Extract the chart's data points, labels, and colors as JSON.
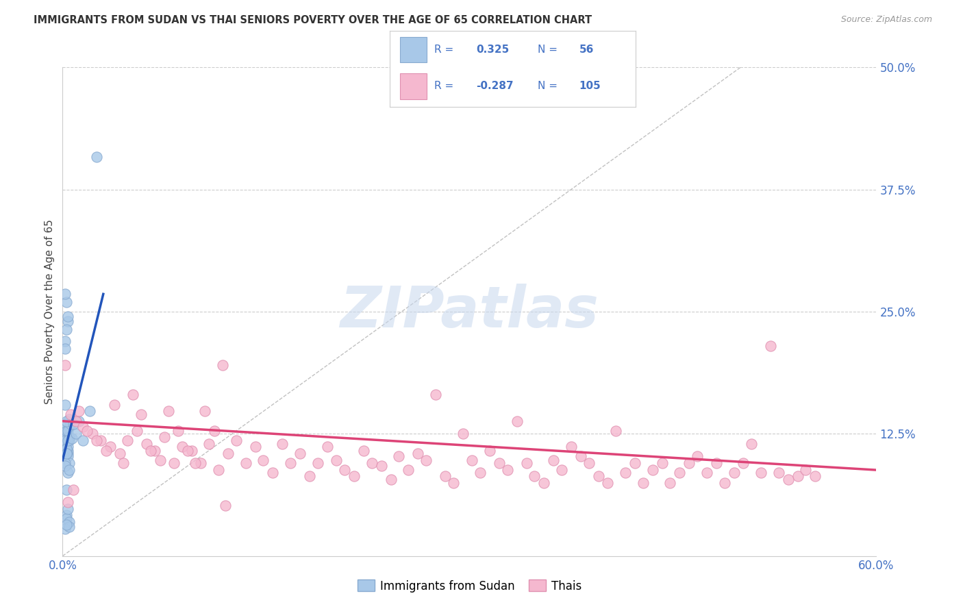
{
  "title": "IMMIGRANTS FROM SUDAN VS THAI SENIORS POVERTY OVER THE AGE OF 65 CORRELATION CHART",
  "source": "Source: ZipAtlas.com",
  "ylabel": "Seniors Poverty Over the Age of 65",
  "xlim": [
    0.0,
    0.6
  ],
  "ylim": [
    0.0,
    0.5
  ],
  "xtick_positions": [
    0.0,
    0.1,
    0.2,
    0.3,
    0.4,
    0.5,
    0.6
  ],
  "xticklabels": [
    "0.0%",
    "",
    "",
    "",
    "",
    "",
    "60.0%"
  ],
  "ytick_positions": [
    0.0,
    0.125,
    0.25,
    0.375,
    0.5
  ],
  "yticklabels": [
    "",
    "12.5%",
    "25.0%",
    "37.5%",
    "50.0%"
  ],
  "grid_color": "#cccccc",
  "bg_color": "#ffffff",
  "watermark_text": "ZIPatlas",
  "watermark_color": "#c8d8ee",
  "blue_fill": "#a8c8e8",
  "blue_edge": "#88aad0",
  "pink_fill": "#f5b8cf",
  "pink_edge": "#e090b0",
  "blue_line_color": "#2255bb",
  "pink_line_color": "#dd4477",
  "tick_label_color": "#4472c4",
  "legend_text_color": "#4472c4",
  "title_color": "#333333",
  "source_color": "#999999",
  "blue_label": "Immigrants from Sudan",
  "pink_label": "Thais",
  "legend_r1": "R = ",
  "legend_v1": "0.325",
  "legend_n1_lbl": "N = ",
  "legend_n1": "56",
  "legend_r2": "R = ",
  "legend_v2": "-0.287",
  "legend_n2_lbl": "N = ",
  "legend_n2": "105",
  "blue_x": [
    0.003,
    0.004,
    0.002,
    0.005,
    0.003,
    0.004,
    0.002,
    0.003,
    0.005,
    0.002,
    0.003,
    0.004,
    0.002,
    0.003,
    0.004,
    0.003,
    0.002,
    0.004,
    0.003,
    0.002,
    0.004,
    0.003,
    0.005,
    0.002,
    0.003,
    0.004,
    0.003,
    0.002,
    0.005,
    0.003,
    0.004,
    0.003,
    0.002,
    0.005,
    0.003,
    0.004,
    0.006,
    0.003,
    0.004,
    0.002,
    0.003,
    0.005,
    0.007,
    0.01,
    0.015,
    0.02,
    0.012,
    0.008,
    0.025,
    0.003,
    0.003,
    0.004,
    0.005,
    0.002,
    0.005,
    0.003
  ],
  "blue_y": [
    0.125,
    0.13,
    0.115,
    0.12,
    0.11,
    0.105,
    0.135,
    0.128,
    0.118,
    0.112,
    0.122,
    0.108,
    0.22,
    0.115,
    0.24,
    0.26,
    0.268,
    0.245,
    0.232,
    0.212,
    0.102,
    0.115,
    0.095,
    0.118,
    0.108,
    0.112,
    0.128,
    0.155,
    0.14,
    0.11,
    0.085,
    0.105,
    0.095,
    0.122,
    0.068,
    0.128,
    0.135,
    0.105,
    0.118,
    0.092,
    0.138,
    0.088,
    0.12,
    0.125,
    0.118,
    0.148,
    0.138,
    0.135,
    0.408,
    0.042,
    0.038,
    0.048,
    0.035,
    0.028,
    0.03,
    0.032
  ],
  "pink_x": [
    0.006,
    0.01,
    0.015,
    0.022,
    0.028,
    0.035,
    0.042,
    0.048,
    0.055,
    0.062,
    0.068,
    0.075,
    0.082,
    0.088,
    0.095,
    0.102,
    0.108,
    0.115,
    0.122,
    0.128,
    0.135,
    0.142,
    0.148,
    0.155,
    0.162,
    0.168,
    0.175,
    0.182,
    0.188,
    0.195,
    0.202,
    0.208,
    0.215,
    0.222,
    0.228,
    0.235,
    0.242,
    0.248,
    0.255,
    0.262,
    0.268,
    0.275,
    0.282,
    0.288,
    0.295,
    0.302,
    0.308,
    0.315,
    0.322,
    0.328,
    0.335,
    0.342,
    0.348,
    0.355,
    0.362,
    0.368,
    0.375,
    0.382,
    0.388,
    0.395,
    0.402,
    0.408,
    0.415,
    0.422,
    0.428,
    0.435,
    0.442,
    0.448,
    0.455,
    0.462,
    0.468,
    0.475,
    0.482,
    0.488,
    0.495,
    0.502,
    0.508,
    0.515,
    0.522,
    0.528,
    0.535,
    0.542,
    0.548,
    0.555,
    0.012,
    0.018,
    0.025,
    0.032,
    0.038,
    0.045,
    0.052,
    0.058,
    0.065,
    0.072,
    0.078,
    0.085,
    0.092,
    0.098,
    0.105,
    0.112,
    0.118,
    0.008,
    0.004,
    0.002,
    0.12
  ],
  "pink_y": [
    0.145,
    0.138,
    0.132,
    0.125,
    0.118,
    0.112,
    0.105,
    0.118,
    0.128,
    0.115,
    0.108,
    0.122,
    0.095,
    0.112,
    0.108,
    0.095,
    0.115,
    0.088,
    0.105,
    0.118,
    0.095,
    0.112,
    0.098,
    0.085,
    0.115,
    0.095,
    0.105,
    0.082,
    0.095,
    0.112,
    0.098,
    0.088,
    0.082,
    0.108,
    0.095,
    0.092,
    0.078,
    0.102,
    0.088,
    0.105,
    0.098,
    0.165,
    0.082,
    0.075,
    0.125,
    0.098,
    0.085,
    0.108,
    0.095,
    0.088,
    0.138,
    0.095,
    0.082,
    0.075,
    0.098,
    0.088,
    0.112,
    0.102,
    0.095,
    0.082,
    0.075,
    0.128,
    0.085,
    0.095,
    0.075,
    0.088,
    0.095,
    0.075,
    0.085,
    0.095,
    0.102,
    0.085,
    0.095,
    0.075,
    0.085,
    0.095,
    0.115,
    0.085,
    0.215,
    0.085,
    0.078,
    0.082,
    0.088,
    0.082,
    0.148,
    0.128,
    0.118,
    0.108,
    0.155,
    0.095,
    0.165,
    0.145,
    0.108,
    0.098,
    0.148,
    0.128,
    0.108,
    0.095,
    0.148,
    0.128,
    0.195,
    0.068,
    0.055,
    0.195,
    0.052
  ],
  "blue_trend_x": [
    0.0,
    0.03
  ],
  "blue_trend_y": [
    0.098,
    0.268
  ],
  "pink_trend_x": [
    0.0,
    0.6
  ],
  "pink_trend_y": [
    0.138,
    0.088
  ]
}
